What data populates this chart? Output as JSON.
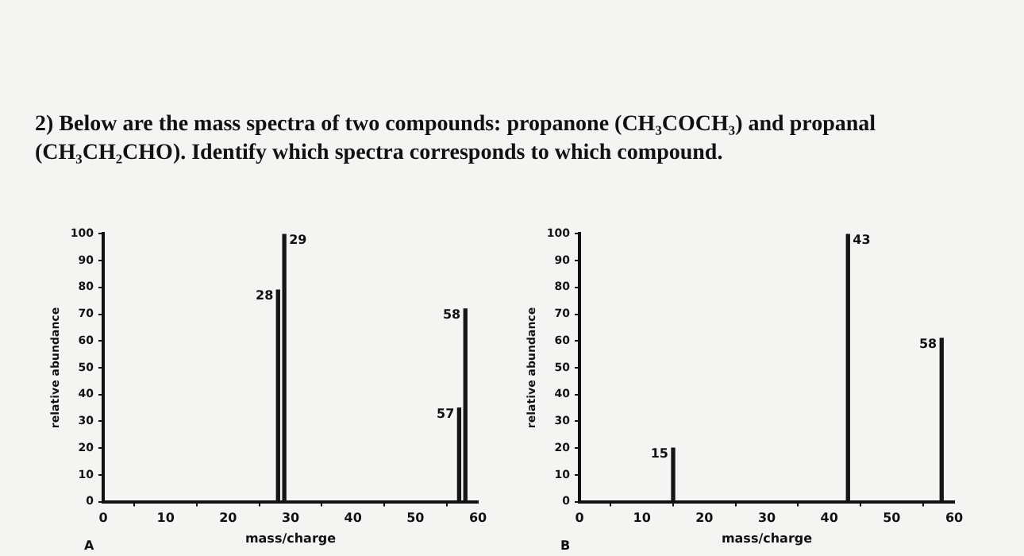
{
  "chart_data": [
    {
      "type": "bar",
      "title": "2) Below are the mass spectra of two compounds: propanone (CH₃COCH₃) and propanal (CH₃CH₂CHO). Identify which spectra corresponds to which compound.",
      "xlabel": "mass/charge",
      "ylabel": "relative abundance",
      "annotations": [
        "A",
        {
          "text": "28",
          "x": 28,
          "y": 79
        },
        {
          "text": "29",
          "x": 29,
          "y": 100
        },
        {
          "text": "57",
          "x": 57,
          "y": 35
        },
        {
          "text": "58",
          "x": 58,
          "y": 72
        }
      ],
      "x": [
        28,
        29,
        57,
        58
      ],
      "values": [
        79,
        100,
        35,
        72
      ],
      "color": "#151515",
      "xlim": [
        0,
        60
      ],
      "xticks": [
        0,
        10,
        20,
        30,
        40,
        50,
        60
      ],
      "ylim": [
        0,
        100
      ],
      "yticks": [
        0,
        10,
        20,
        30,
        40,
        50,
        60,
        70,
        80,
        90,
        100
      ],
      "grid": false,
      "legend": false
    },
    {
      "type": "bar",
      "xlabel": "mass/charge",
      "ylabel": "relative abundance",
      "annotations": [
        "B",
        {
          "text": "15",
          "x": 15,
          "y": 20
        },
        {
          "text": "43",
          "x": 43,
          "y": 100
        },
        {
          "text": "58",
          "x": 58,
          "y": 61
        }
      ],
      "x": [
        15,
        43,
        58
      ],
      "values": [
        20,
        100,
        61
      ],
      "color": "#151515",
      "xlim": [
        0,
        60
      ],
      "xticks": [
        0,
        10,
        20,
        30,
        40,
        50,
        60
      ],
      "ylim": [
        0,
        100
      ],
      "yticks": [
        0,
        10,
        20,
        30,
        40,
        50,
        60,
        70,
        80,
        90,
        100
      ],
      "grid": false,
      "legend": false
    }
  ]
}
